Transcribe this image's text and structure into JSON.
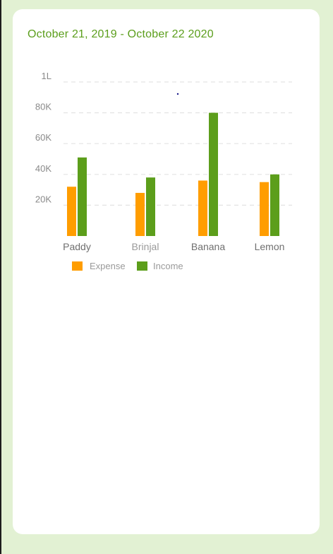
{
  "header": {
    "date_range": "October 21, 2019 - October 22 2020"
  },
  "colors": {
    "page_background": "#e2f1d3",
    "card": "#ffffff",
    "accent": "#5b9e1c",
    "expense": "#ff9d00",
    "income": "#5c9e1b"
  },
  "chart_data": {
    "type": "bar",
    "categories": [
      "Paddy",
      "Brinjal",
      "Banana",
      "Lemon"
    ],
    "series": [
      {
        "name": "Expense",
        "color": "#ff9d00",
        "values": [
          32000,
          28000,
          36000,
          35000
        ]
      },
      {
        "name": "Income",
        "color": "#5c9e1b",
        "values": [
          51000,
          38000,
          80000,
          40000
        ]
      }
    ],
    "y_ticks": [
      {
        "value": 20000,
        "label": "20K"
      },
      {
        "value": 40000,
        "label": "40K"
      },
      {
        "value": 60000,
        "label": "60K"
      },
      {
        "value": 80000,
        "label": "80K"
      },
      {
        "value": 100000,
        "label": "1L"
      }
    ],
    "ylim": [
      0,
      100000
    ],
    "grid": "dashed-horizontal",
    "legend_position": "bottom-left"
  }
}
